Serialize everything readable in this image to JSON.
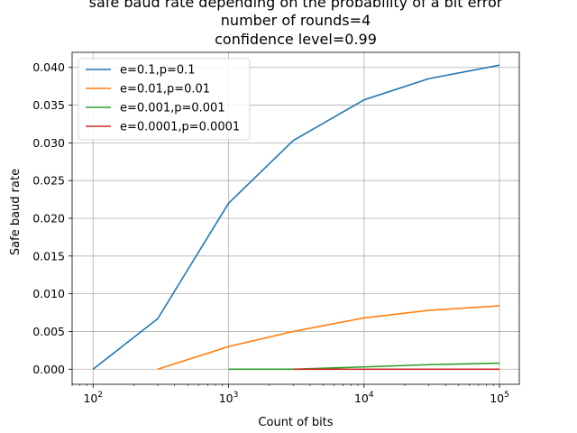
{
  "chart_data": {
    "type": "line",
    "title_lines": [
      "safe baud rate depending on the probability of a bit error",
      "number of rounds=4",
      "confidence level=0.99"
    ],
    "xlabel": "Count of bits",
    "ylabel": "Safe baud rate",
    "xscale": "log",
    "xlim": [
      70,
      140000
    ],
    "ylim": [
      -0.002,
      0.042
    ],
    "x_ticks": [
      {
        "value": 100,
        "base": "10",
        "exp": "2"
      },
      {
        "value": 1000,
        "base": "10",
        "exp": "3"
      },
      {
        "value": 10000,
        "base": "10",
        "exp": "4"
      },
      {
        "value": 100000,
        "base": "10",
        "exp": "5"
      }
    ],
    "y_ticks": [
      {
        "value": 0.0,
        "label": "0.000"
      },
      {
        "value": 0.005,
        "label": "0.005"
      },
      {
        "value": 0.01,
        "label": "0.010"
      },
      {
        "value": 0.015,
        "label": "0.015"
      },
      {
        "value": 0.02,
        "label": "0.020"
      },
      {
        "value": 0.025,
        "label": "0.025"
      },
      {
        "value": 0.03,
        "label": "0.030"
      },
      {
        "value": 0.035,
        "label": "0.035"
      },
      {
        "value": 0.04,
        "label": "0.040"
      }
    ],
    "grid": true,
    "legend_position": "top-left",
    "series": [
      {
        "name": "e=0.1,p=0.1",
        "color": "#1f77b4",
        "x": [
          100,
          300,
          1000,
          3000,
          10000,
          30000,
          100000
        ],
        "y": [
          0.0,
          0.0067,
          0.022,
          0.0303,
          0.0357,
          0.0385,
          0.0403
        ]
      },
      {
        "name": "e=0.01,p=0.01",
        "color": "#ff7f0e",
        "x": [
          300,
          1000,
          3000,
          10000,
          30000,
          100000
        ],
        "y": [
          0.0,
          0.003,
          0.005,
          0.0068,
          0.0078,
          0.0084
        ]
      },
      {
        "name": "e=0.001,p=0.001",
        "color": "#2ca02c",
        "x": [
          1000,
          3000,
          10000,
          30000,
          100000
        ],
        "y": [
          0.0,
          0.0,
          0.0003,
          0.0006,
          0.0008
        ]
      },
      {
        "name": "e=0.0001,p=0.0001",
        "color": "#d62728",
        "x": [
          3000,
          10000,
          30000,
          100000
        ],
        "y": [
          0.0,
          0.0,
          0.0,
          0.0
        ]
      }
    ]
  }
}
